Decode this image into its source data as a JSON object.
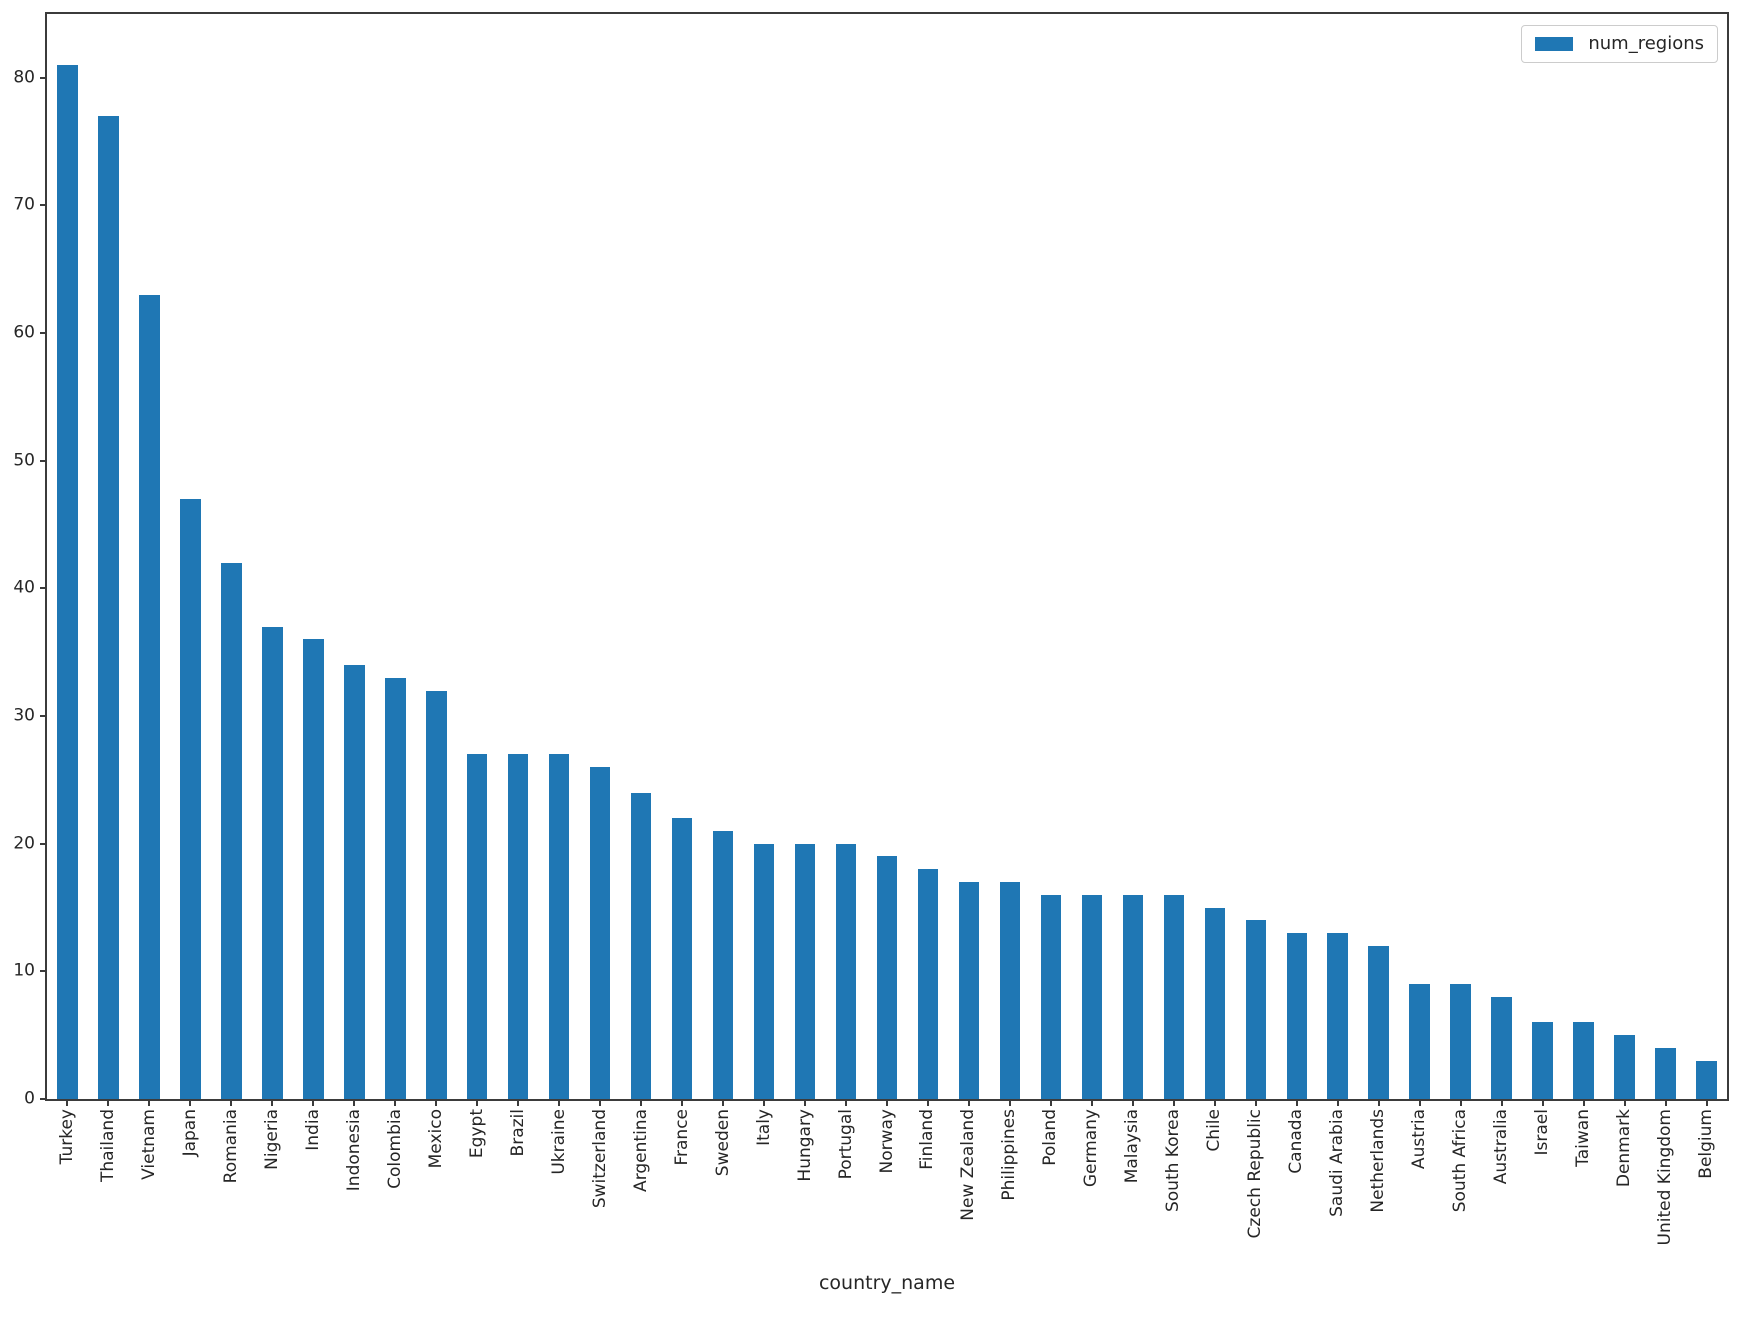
{
  "chart_data": {
    "type": "bar",
    "title": "",
    "xlabel": "country_name",
    "ylabel": "",
    "legend": [
      "num_regions"
    ],
    "legend_position": "upper right",
    "bar_color": "#1f77b4",
    "axis_color": "#3b3b3b",
    "grid": false,
    "ylim": [
      0,
      85
    ],
    "yticks": [
      0,
      10,
      20,
      30,
      40,
      50,
      60,
      70,
      80
    ],
    "categories": [
      "Turkey",
      "Thailand",
      "Vietnam",
      "Japan",
      "Romania",
      "Nigeria",
      "India",
      "Indonesia",
      "Colombia",
      "Mexico",
      "Egypt",
      "Brazil",
      "Ukraine",
      "Switzerland",
      "Argentina",
      "France",
      "Sweden",
      "Italy",
      "Hungary",
      "Portugal",
      "Norway",
      "Finland",
      "New Zealand",
      "Philippines",
      "Poland",
      "Germany",
      "Malaysia",
      "South Korea",
      "Chile",
      "Czech Republic",
      "Canada",
      "Saudi Arabia",
      "Netherlands",
      "Austria",
      "South Africa",
      "Australia",
      "Israel",
      "Taiwan",
      "Denmark",
      "United Kingdom",
      "Belgium"
    ],
    "values": [
      81,
      77,
      63,
      47,
      42,
      37,
      36,
      34,
      33,
      32,
      27,
      27,
      27,
      26,
      24,
      22,
      21,
      20,
      20,
      20,
      19,
      18,
      17,
      17,
      16,
      16,
      16,
      16,
      15,
      14,
      13,
      13,
      12,
      9,
      9,
      8,
      6,
      6,
      5,
      4,
      3
    ]
  }
}
